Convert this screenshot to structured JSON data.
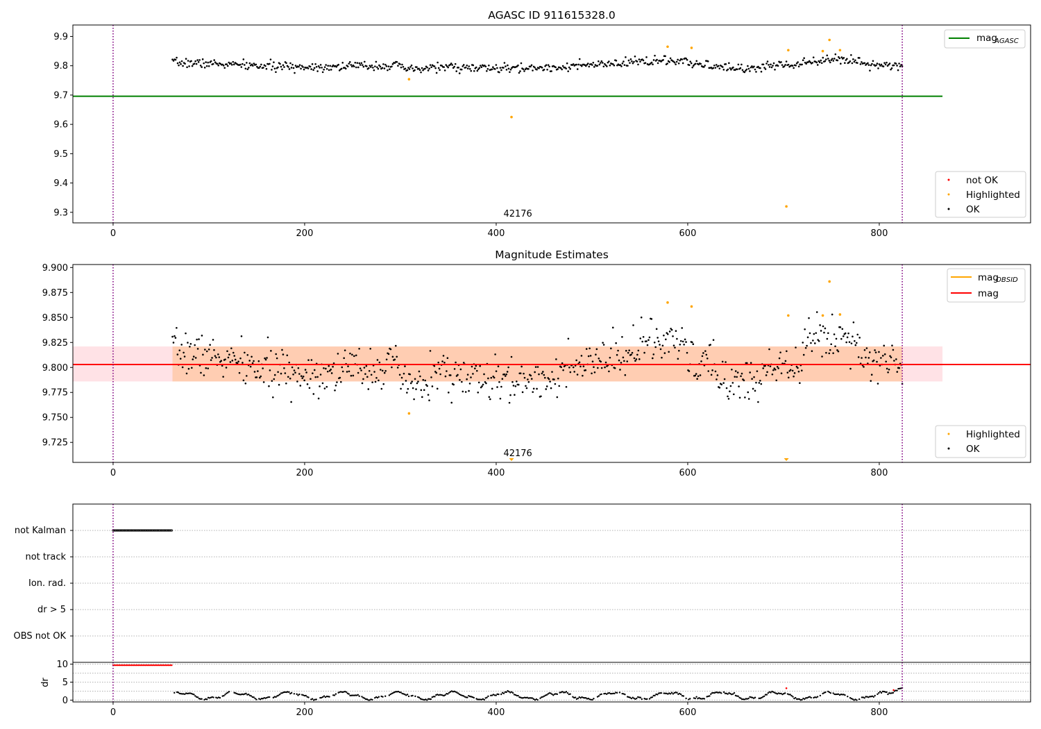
{
  "chart_data": [
    {
      "type": "scatter",
      "title": "AGASC ID 911615328.0",
      "xlabel": "",
      "ylabel": "",
      "xlim": [
        -42,
        958
      ],
      "ylim": [
        9.264,
        9.939
      ],
      "xticks": [
        0,
        200,
        400,
        600,
        800
      ],
      "xtick_labels": [
        "0",
        "200",
        "400",
        "600",
        "800"
      ],
      "yticks": [
        9.3,
        9.4,
        9.5,
        9.6,
        9.7,
        9.8,
        9.9
      ],
      "ytick_labels": [
        "9.3",
        "9.4",
        "9.5",
        "9.6",
        "9.7",
        "9.8",
        "9.9"
      ],
      "grid": false,
      "obs_boundaries": [
        0,
        824
      ],
      "obs_label": {
        "text": "42176",
        "x": 411
      },
      "lines": [
        {
          "name": "mag_AGASC",
          "color": "#008000",
          "y": 9.696,
          "x": [
            -42,
            866
          ]
        }
      ],
      "ok_series": {
        "name": "OK",
        "color": "#000000",
        "x_start": 62,
        "x_end": 824,
        "count": 700,
        "seed": 7,
        "base": 9.8,
        "noise": 0.0075,
        "wave": 0.008
      },
      "highlighted": {
        "name": "Highlighted",
        "color": "#ffa500",
        "points": [
          [
            309,
            9.754
          ],
          [
            416,
            9.625
          ],
          [
            579,
            9.865
          ],
          [
            604,
            9.861
          ],
          [
            703,
            9.32
          ],
          [
            705,
            9.853
          ],
          [
            741,
            9.85
          ],
          [
            748,
            9.888
          ],
          [
            759,
            9.853
          ]
        ]
      },
      "legend_upper": {
        "position": "upper right",
        "entries": [
          {
            "label": "mag",
            "subscript": "AGASC",
            "color": "#008000"
          }
        ]
      },
      "legend_lower": {
        "position": "lower right",
        "entries": [
          {
            "label": "not OK",
            "color": "#ff0000"
          },
          {
            "label": "Highlighted",
            "color": "#ffa500"
          },
          {
            "label": "OK",
            "color": "#000000"
          }
        ]
      }
    },
    {
      "type": "scatter",
      "title": "Magnitude Estimates",
      "xlabel": "",
      "ylabel": "",
      "xlim": [
        -42,
        958
      ],
      "ylim": [
        9.705,
        9.903
      ],
      "xticks": [
        0,
        200,
        400,
        600,
        800
      ],
      "xtick_labels": [
        "0",
        "200",
        "400",
        "600",
        "800"
      ],
      "yticks": [
        9.725,
        9.75,
        9.775,
        9.8,
        9.825,
        9.85,
        9.875,
        9.9
      ],
      "ytick_labels": [
        "9.725",
        "9.750",
        "9.775",
        "9.800",
        "9.825",
        "9.850",
        "9.875",
        "9.900"
      ],
      "grid": false,
      "obs_boundaries": [
        0,
        824
      ],
      "obs_label": {
        "text": "42176",
        "x": 411
      },
      "mag_line": {
        "name": "mag",
        "color": "#ff0000",
        "y": 9.803
      },
      "mag_band": {
        "low": 9.786,
        "high": 9.821,
        "x": [
          -42,
          866
        ],
        "color": "#ffb6c1"
      },
      "obsid_band": {
        "low": 9.786,
        "high": 9.821,
        "x": [
          62,
          824
        ],
        "color": "#ffa54f"
      },
      "ok_series": {
        "name": "OK",
        "color": "#000000",
        "x_start": 62,
        "x_end": 824,
        "count": 720,
        "seed": 7,
        "base": 9.8,
        "noise": 0.0105,
        "wave": 0.012
      },
      "highlighted": {
        "name": "Highlighted",
        "color": "#ffa500",
        "points": [
          [
            309,
            9.754
          ],
          [
            579,
            9.865
          ],
          [
            604,
            9.861
          ],
          [
            705,
            9.852
          ],
          [
            741,
            9.852
          ],
          [
            748,
            9.886
          ],
          [
            759,
            9.853
          ]
        ]
      },
      "out_of_range_markers": [
        {
          "x": 416,
          "color": "#ffa500"
        },
        {
          "x": 703,
          "color": "#ffa500"
        }
      ],
      "legend_upper": {
        "position": "upper right",
        "entries": [
          {
            "label": "mag",
            "subscript": "OBSID",
            "color": "#ffa500"
          },
          {
            "label": "mag",
            "subscript": "",
            "color": "#ff0000"
          }
        ]
      },
      "legend_lower": {
        "position": "lower right",
        "entries": [
          {
            "label": "Highlighted",
            "color": "#ffa500"
          },
          {
            "label": "OK",
            "color": "#000000"
          }
        ]
      }
    },
    {
      "type": "scatter",
      "title": "",
      "xlabel": "",
      "ylabel": "",
      "xlim": [
        -42,
        958
      ],
      "categories": [
        "not Kalman",
        "not track",
        "Ion. rad.",
        "dr > 5",
        "OBS not OK"
      ],
      "grid": true,
      "obs_boundaries": [
        0,
        824
      ],
      "flag_segments": [
        {
          "category": "not Kalman",
          "x": [
            0,
            62
          ],
          "color": "#000000"
        }
      ]
    },
    {
      "type": "scatter",
      "title": "",
      "xlabel": "",
      "ylabel": "dr",
      "xlim": [
        -42,
        958
      ],
      "ylim": [
        -0.5,
        10.5
      ],
      "xticks": [
        0,
        200,
        400,
        600,
        800
      ],
      "xtick_labels": [
        "0",
        "200",
        "400",
        "600",
        "800"
      ],
      "yticks": [
        0,
        5,
        10
      ],
      "ytick_labels": [
        "0",
        "5",
        "10"
      ],
      "grid": true,
      "obs_boundaries": [
        0,
        824
      ],
      "red_series": {
        "x": [
          0,
          62
        ],
        "y": 9.7,
        "color": "#ff0000"
      },
      "red_points": [
        [
          703,
          3.3
        ],
        [
          815,
          2.8
        ]
      ],
      "ok_series": {
        "name": "OK",
        "color": "#000000",
        "x_start": 64,
        "x_end": 824,
        "count": 560,
        "seed": 11,
        "base": 1.2
      }
    }
  ]
}
